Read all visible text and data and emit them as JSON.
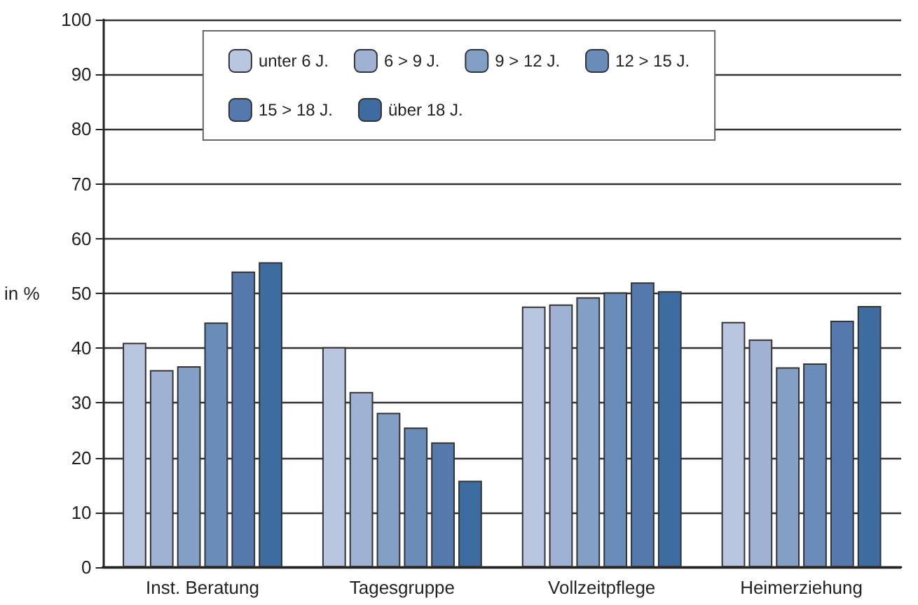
{
  "chart_data": {
    "type": "bar",
    "ylabel": "in %",
    "categories": [
      "Inst. Beratung",
      "Tagesgruppe",
      "Vollzeitpflege",
      "Heimerziehung"
    ],
    "series": [
      {
        "name": "unter 6 J.",
        "color": "#b9c6df",
        "values": [
          41,
          40.2,
          47.6,
          44.8
        ]
      },
      {
        "name": "6 > 9 J.",
        "color": "#9fb2d4",
        "values": [
          36,
          32,
          48,
          41.6
        ]
      },
      {
        "name": "9 > 12 J.",
        "color": "#849fc6",
        "values": [
          36.7,
          28.2,
          49.3,
          36.5
        ]
      },
      {
        "name": "12 > 15 J.",
        "color": "#6a8cb9",
        "values": [
          44.7,
          25.5,
          50.2,
          37.2
        ]
      },
      {
        "name": "15 > 18 J.",
        "color": "#5579ad",
        "values": [
          54,
          22.8,
          52,
          45
        ]
      },
      {
        "name": "über 18 J.",
        "color": "#3c6ca0",
        "values": [
          55.7,
          15.8,
          50.4,
          47.7
        ]
      }
    ],
    "ylim": [
      0,
      100
    ],
    "yticks": [
      0,
      10,
      20,
      30,
      40,
      50,
      60,
      70,
      80,
      90,
      100
    ],
    "grid": "y",
    "legend": "top"
  }
}
